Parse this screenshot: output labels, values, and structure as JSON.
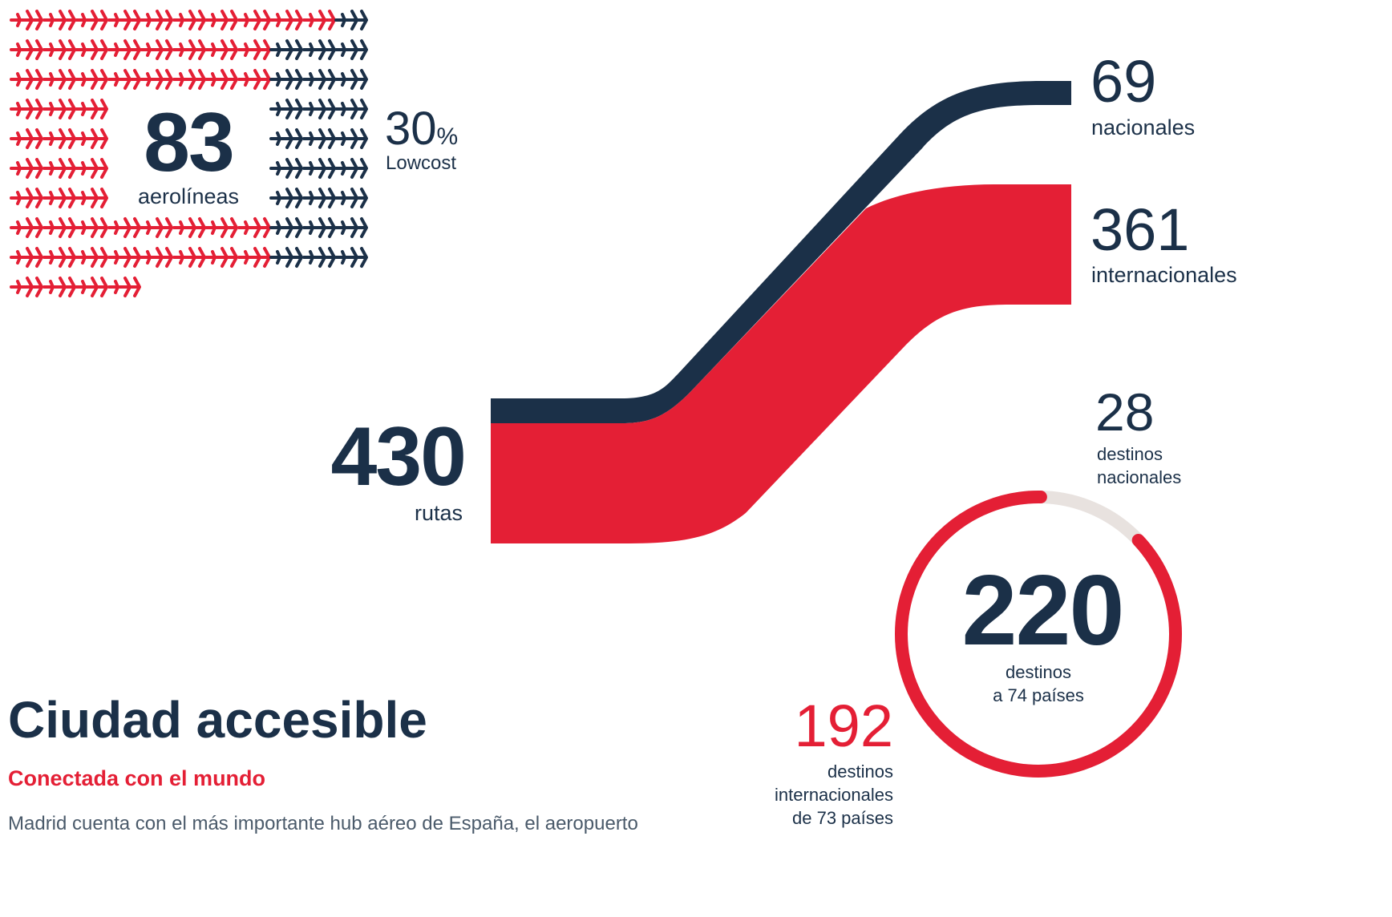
{
  "airlines": {
    "number": "83",
    "label": "aerolíneas",
    "lowcost_value": "30",
    "lowcost_unit": "%",
    "lowcost_label": "Lowcost",
    "total_count": 83,
    "lowcost_share": 0.3,
    "colors": {
      "full_service": "#e41f35",
      "lowcost": "#1b3048"
    }
  },
  "routes": {
    "total_number": "430",
    "total_label": "rutas",
    "domestic_number": "69",
    "domestic_label": "nacionales",
    "international_number": "361",
    "international_label": "internacionales",
    "domestic_value": 69,
    "international_value": 361,
    "colors": {
      "domestic": "#1b3048",
      "international": "#e41f35"
    }
  },
  "destinations": {
    "total_number": "220",
    "total_label_1": "destinos",
    "total_label_2": "a 74 países",
    "domestic_number": "28",
    "domestic_label_1": "destinos",
    "domestic_label_2": "nacionales",
    "international_number": "192",
    "international_label_1": "destinos",
    "international_label_2": "internacionales",
    "international_label_3": "de 73 países",
    "domestic_value": 28,
    "international_value": 192,
    "colors": {
      "international": "#e41f35",
      "domestic": "#e8e2df"
    }
  },
  "section": {
    "title": "Ciudad accesible",
    "subtitle": "Conectada con el mundo",
    "body": "Madrid cuenta con el más importante hub aéreo de España, el aeropuerto"
  },
  "icons": {
    "plane": "airplane-icon"
  }
}
